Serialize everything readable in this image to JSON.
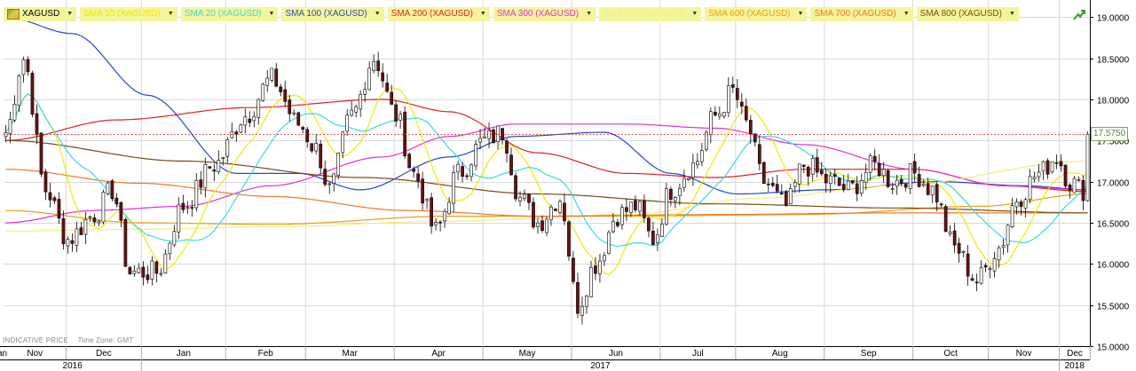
{
  "legend": {
    "instrument": "XAGUSD",
    "indicators": [
      {
        "label": "SMA 10 (XAGUSD)",
        "color": "#f2e800"
      },
      {
        "label": "SMA 20 (XAGUSD)",
        "color": "#38d8e6"
      },
      {
        "label": "SMA 100 (XAGUSD)",
        "color": "#2448cc"
      },
      {
        "label": "SMA 200 (XAGUSD)",
        "color": "#e02020"
      },
      {
        "label": "SMA 300 (XAGUSD)",
        "color": "#e030d0"
      },
      {
        "label": "SMA 500 (XAGUSD)",
        "color": "#f4ec80"
      },
      {
        "label": "SMA 600 (XAGUSD)",
        "color": "#e8a010"
      },
      {
        "label": "SMA 700 (XAGUSD)",
        "color": "#f07828"
      },
      {
        "label": "SMA 800 (XAGUSD)",
        "color": "#7a4c18"
      }
    ]
  },
  "footer": {
    "indicative": "INDICATIVE PRICE",
    "timezone": "Time Zone: GMT"
  },
  "icons": {
    "instrument": "silver-bar-icon",
    "corner": "trend-arrow-icon"
  },
  "chart_data": {
    "type": "candlestick",
    "instrument": "XAGUSD",
    "last_price": "17.5750",
    "y_range": [
      15.0,
      19.1
    ],
    "y_ticks": [
      "19.0000",
      "18.5000",
      "18.0000",
      "17.5000",
      "17.0000",
      "16.5000",
      "16.0000",
      "15.5000",
      "15.0000"
    ],
    "months": [
      "Nov",
      "Dec",
      "Jan",
      "Feb",
      "Mar",
      "Apr",
      "May",
      "Jun",
      "Jul",
      "Aug",
      "Sep",
      "Oct",
      "Nov",
      "Dec",
      "Jan"
    ],
    "years": [
      "2016",
      "2017",
      "2018"
    ],
    "grid": true,
    "colors": {
      "up": "#ffffff",
      "down": "#6e0f0f",
      "outline": "#000000",
      "grid": "#d8d8d8",
      "last_price_line": "#e02020"
    },
    "close_anchors": [
      [
        0,
        17.6
      ],
      [
        4,
        18.5
      ],
      [
        9,
        16.9
      ],
      [
        14,
        16.3
      ],
      [
        20,
        16.6
      ],
      [
        24,
        16.9
      ],
      [
        28,
        15.9
      ],
      [
        34,
        15.9
      ],
      [
        40,
        16.7
      ],
      [
        47,
        17.2
      ],
      [
        54,
        17.8
      ],
      [
        60,
        18.25
      ],
      [
        66,
        17.7
      ],
      [
        70,
        17.4
      ],
      [
        73,
        16.9
      ],
      [
        78,
        17.8
      ],
      [
        83,
        18.5
      ],
      [
        88,
        17.8
      ],
      [
        92,
        17.1
      ],
      [
        97,
        16.4
      ],
      [
        102,
        17.1
      ],
      [
        108,
        17.5
      ],
      [
        112,
        17.6
      ],
      [
        116,
        16.8
      ],
      [
        120,
        16.5
      ],
      [
        125,
        16.8
      ],
      [
        129,
        15.5
      ],
      [
        133,
        16.0
      ],
      [
        138,
        16.6
      ],
      [
        142,
        16.7
      ],
      [
        146,
        16.3
      ],
      [
        150,
        16.9
      ],
      [
        155,
        17.2
      ],
      [
        160,
        17.8
      ],
      [
        164,
        18.1
      ],
      [
        167,
        17.7
      ],
      [
        171,
        17.0
      ],
      [
        176,
        16.7
      ],
      [
        180,
        17.2
      ],
      [
        186,
        17.0
      ],
      [
        190,
        16.9
      ],
      [
        196,
        17.2
      ],
      [
        200,
        17.0
      ],
      [
        205,
        17.1
      ],
      [
        209,
        16.9
      ],
      [
        214,
        16.2
      ],
      [
        219,
        15.8
      ],
      [
        224,
        16.2
      ],
      [
        228,
        16.8
      ],
      [
        233,
        17.1
      ],
      [
        237,
        17.3
      ],
      [
        240,
        17.0
      ],
      [
        243,
        16.9
      ],
      [
        244,
        17.6
      ]
    ],
    "sma_anchors": {
      "SMA 100 (XAGUSD)": [
        [
          0,
          19.0
        ],
        [
          15,
          18.8
        ],
        [
          32,
          18.05
        ],
        [
          52,
          17.1
        ],
        [
          66,
          17.1
        ],
        [
          80,
          16.9
        ],
        [
          100,
          17.3
        ],
        [
          115,
          17.55
        ],
        [
          135,
          17.6
        ],
        [
          150,
          17.1
        ],
        [
          165,
          16.85
        ],
        [
          185,
          16.9
        ],
        [
          210,
          17.0
        ],
        [
          230,
          16.95
        ],
        [
          244,
          16.9
        ]
      ],
      "SMA 200 (XAGUSD)": [
        [
          0,
          17.5
        ],
        [
          25,
          17.75
        ],
        [
          55,
          17.9
        ],
        [
          85,
          18.0
        ],
        [
          100,
          17.85
        ],
        [
          120,
          17.35
        ],
        [
          140,
          17.1
        ],
        [
          160,
          17.05
        ],
        [
          180,
          17.15
        ],
        [
          205,
          17.15
        ],
        [
          225,
          16.95
        ],
        [
          244,
          16.88
        ]
      ],
      "SMA 300 (XAGUSD)": [
        [
          0,
          16.5
        ],
        [
          20,
          16.65
        ],
        [
          40,
          16.7
        ],
        [
          60,
          16.95
        ],
        [
          85,
          17.3
        ],
        [
          100,
          17.55
        ],
        [
          115,
          17.7
        ],
        [
          140,
          17.7
        ],
        [
          160,
          17.65
        ],
        [
          180,
          17.45
        ],
        [
          205,
          17.15
        ],
        [
          225,
          16.95
        ],
        [
          244,
          16.9
        ]
      ],
      "SMA 500 (XAGUSD)": [
        [
          0,
          16.4
        ],
        [
          30,
          16.42
        ],
        [
          60,
          16.45
        ],
        [
          100,
          16.52
        ],
        [
          140,
          16.6
        ],
        [
          170,
          16.8
        ],
        [
          200,
          16.95
        ],
        [
          244,
          17.25
        ]
      ],
      "SMA 600 (XAGUSD)": [
        [
          0,
          16.65
        ],
        [
          30,
          16.5
        ],
        [
          60,
          16.48
        ],
        [
          100,
          16.58
        ],
        [
          140,
          16.58
        ],
        [
          180,
          16.6
        ],
        [
          220,
          16.7
        ],
        [
          244,
          16.85
        ]
      ],
      "SMA 700 (XAGUSD)": [
        [
          0,
          17.15
        ],
        [
          30,
          16.98
        ],
        [
          60,
          16.82
        ],
        [
          90,
          16.65
        ],
        [
          120,
          16.58
        ],
        [
          160,
          16.6
        ],
        [
          200,
          16.62
        ],
        [
          244,
          16.62
        ]
      ],
      "SMA 800 (XAGUSD)": [
        [
          0,
          17.5
        ],
        [
          40,
          17.25
        ],
        [
          80,
          17.05
        ],
        [
          120,
          16.85
        ],
        [
          160,
          16.73
        ],
        [
          200,
          16.68
        ],
        [
          244,
          16.62
        ]
      ]
    }
  }
}
